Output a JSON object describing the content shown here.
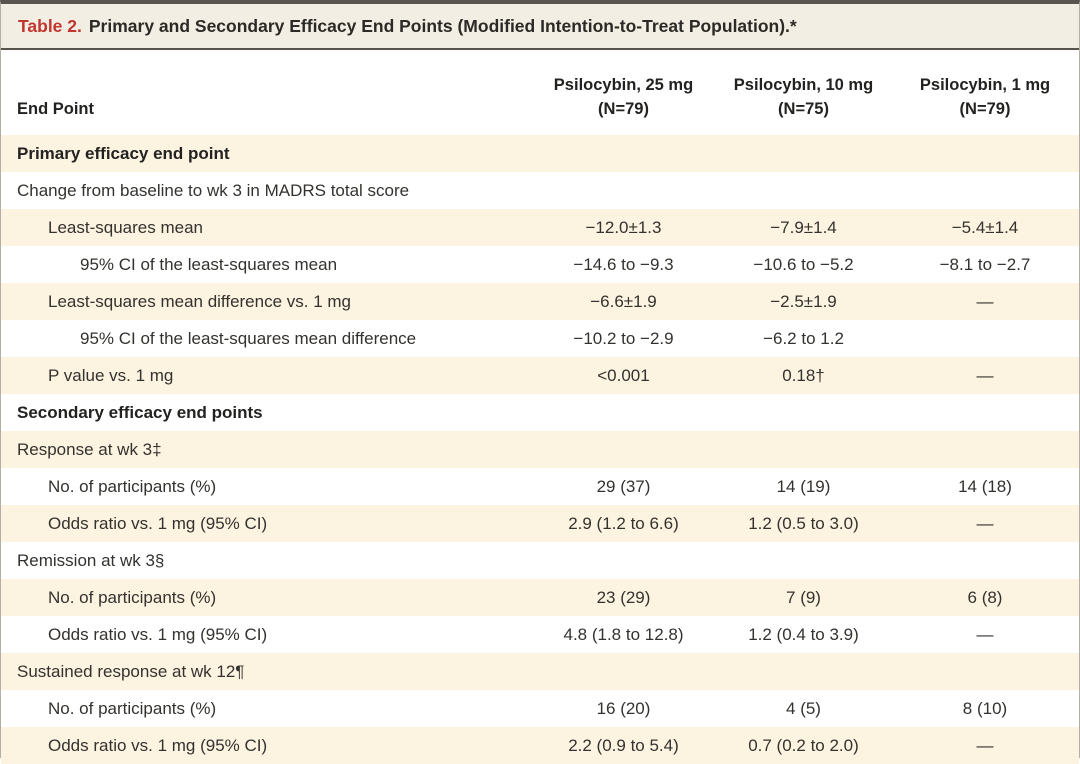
{
  "table": {
    "title_label": "Table 2.",
    "title_text": "Primary and Secondary Efficacy End Points (Modified Intention-to-Treat Population).*",
    "columns": {
      "endpoint_header": "End Point",
      "groups": [
        {
          "line1": "Psilocybin, 25 mg",
          "line2": "(N=79)"
        },
        {
          "line1": "Psilocybin, 10 mg",
          "line2": "(N=75)"
        },
        {
          "line1": "Psilocybin, 1 mg",
          "line2": "(N=79)"
        }
      ]
    },
    "rows": [
      {
        "label": "Primary efficacy end point",
        "indent": 0,
        "bold": true,
        "values": [
          "",
          "",
          ""
        ]
      },
      {
        "label": "Change from baseline to wk 3 in MADRS total score",
        "indent": 0,
        "bold": false,
        "values": [
          "",
          "",
          ""
        ]
      },
      {
        "label": "Least-squares mean",
        "indent": 1,
        "bold": false,
        "values": [
          "−12.0±1.3",
          "−7.9±1.4",
          "−5.4±1.4"
        ]
      },
      {
        "label": "95% CI of the least-squares mean",
        "indent": 2,
        "bold": false,
        "values": [
          "−14.6 to −9.3",
          "−10.6 to −5.2",
          "−8.1 to −2.7"
        ]
      },
      {
        "label": "Least-squares mean difference vs. 1 mg",
        "indent": 1,
        "bold": false,
        "values": [
          "−6.6±1.9",
          "−2.5±1.9",
          "—"
        ]
      },
      {
        "label": "95% CI of the least-squares mean difference",
        "indent": 2,
        "bold": false,
        "values": [
          "−10.2 to −2.9",
          "−6.2 to 1.2",
          ""
        ]
      },
      {
        "label": "P value vs. 1 mg",
        "indent": 1,
        "bold": false,
        "values": [
          "<0.001",
          "0.18†",
          "—"
        ]
      },
      {
        "label": "Secondary efficacy end points",
        "indent": 0,
        "bold": true,
        "values": [
          "",
          "",
          ""
        ]
      },
      {
        "label": "Response at wk 3‡",
        "indent": 0,
        "bold": false,
        "values": [
          "",
          "",
          ""
        ]
      },
      {
        "label": "No. of participants (%)",
        "indent": 1,
        "bold": false,
        "values": [
          "29 (37)",
          "14 (19)",
          "14 (18)"
        ]
      },
      {
        "label": "Odds ratio vs. 1 mg (95% CI)",
        "indent": 1,
        "bold": false,
        "values": [
          "2.9 (1.2 to 6.6)",
          "1.2 (0.5 to 3.0)",
          "—"
        ]
      },
      {
        "label": "Remission at wk 3§",
        "indent": 0,
        "bold": false,
        "values": [
          "",
          "",
          ""
        ]
      },
      {
        "label": "No. of participants (%)",
        "indent": 1,
        "bold": false,
        "values": [
          "23 (29)",
          "7 (9)",
          "6 (8)"
        ]
      },
      {
        "label": "Odds ratio vs. 1 mg (95% CI)",
        "indent": 1,
        "bold": false,
        "values": [
          "4.8 (1.8 to 12.8)",
          "1.2 (0.4 to 3.9)",
          "—"
        ]
      },
      {
        "label": "Sustained response at wk 12¶",
        "indent": 0,
        "bold": false,
        "values": [
          "",
          "",
          ""
        ]
      },
      {
        "label": "No. of participants (%)",
        "indent": 1,
        "bold": false,
        "values": [
          "16 (20)",
          "4 (5)",
          "8 (10)"
        ]
      },
      {
        "label": "Odds ratio vs. 1 mg (95% CI)",
        "indent": 1,
        "bold": false,
        "values": [
          "2.2 (0.9 to 5.4)",
          "0.7 (0.2 to 2.0)",
          "—"
        ]
      }
    ],
    "colors": {
      "accent_red": "#c2362f",
      "title_bar_bg": "#f2eee3",
      "row_stripe": "#fdf3e1",
      "rule_dark": "#57544d",
      "border_gray": "#b3afa4"
    }
  }
}
